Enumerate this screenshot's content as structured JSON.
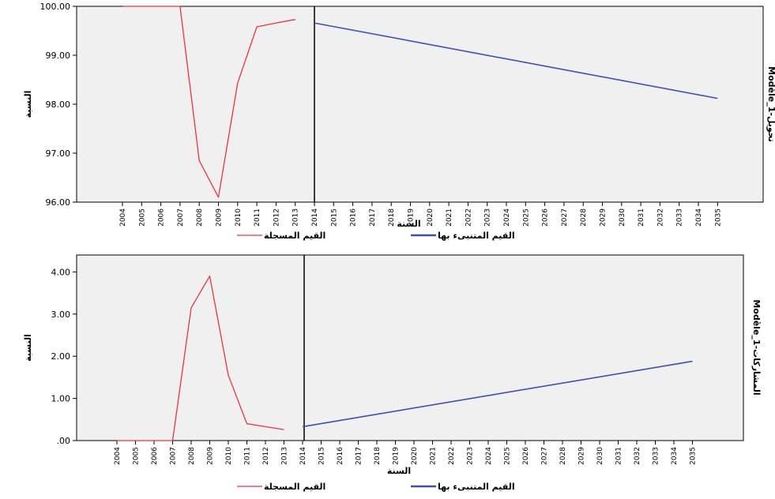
{
  "chart_data": [
    {
      "type": "line",
      "panel_label": "Modèle_1-تحويل",
      "ylabel": "النسبة",
      "xlabel": "السنة",
      "ylim": [
        96.0,
        100.0
      ],
      "yticks": [
        "96.00",
        "97.00",
        "98.00",
        "99.00",
        "100.00"
      ],
      "ytick_values": [
        96,
        97,
        98,
        99,
        100
      ],
      "categories": [
        "2004",
        "2005",
        "2006",
        "2007",
        "2008",
        "2009",
        "2010",
        "2011",
        "2012",
        "2013",
        "2014",
        "2015",
        "2016",
        "2017",
        "2018",
        "2019",
        "2020",
        "2021",
        "2022",
        "2023",
        "2024",
        "2025",
        "2026",
        "2027",
        "2028",
        "2029",
        "2030",
        "2031",
        "2032",
        "2033",
        "2034",
        "2035"
      ],
      "forecast_start": "2014",
      "series": [
        {
          "name": "القيم المسجلة",
          "color": "#e8343c",
          "x": [
            "2004",
            "2005",
            "2006",
            "2007",
            "2008",
            "2009",
            "2010",
            "2011",
            "2012",
            "2013"
          ],
          "values": [
            100.0,
            100.0,
            100.0,
            100.0,
            96.85,
            96.1,
            98.43,
            99.58,
            99.66,
            99.73
          ]
        },
        {
          "name": "القيم المتنبىء بها",
          "color": "#3e4fb0",
          "x": [
            "2014",
            "2035"
          ],
          "values": [
            99.66,
            98.12
          ]
        }
      ],
      "grid": false,
      "legend_position": "bottom"
    },
    {
      "type": "line",
      "panel_label": "Modèle_1-المشاركات",
      "ylabel": "النسبة",
      "xlabel": "السنة",
      "ylim": [
        0.0,
        4.4
      ],
      "yticks": [
        ".00",
        "1.00",
        "2.00",
        "3.00",
        "4.00"
      ],
      "ytick_values": [
        0,
        1,
        2,
        3,
        4
      ],
      "categories": [
        "2004",
        "2005",
        "2006",
        "2007",
        "2008",
        "2009",
        "2010",
        "2011",
        "2012",
        "2013",
        "2014",
        "2015",
        "2016",
        "2017",
        "2018",
        "2019",
        "2020",
        "2021",
        "2022",
        "2023",
        "2024",
        "2025",
        "2026",
        "2027",
        "2028",
        "2029",
        "2030",
        "2031",
        "2032",
        "2033",
        "2034",
        "2035"
      ],
      "forecast_start": "2014",
      "series": [
        {
          "name": "القيم المسجلة",
          "color": "#e8343c",
          "x": [
            "2004",
            "2005",
            "2006",
            "2007",
            "2008",
            "2009",
            "2010",
            "2011",
            "2012",
            "2013"
          ],
          "values": [
            0.0,
            0.0,
            0.0,
            0.0,
            3.15,
            3.9,
            1.55,
            0.4,
            0.33,
            0.26
          ]
        },
        {
          "name": "القيم المتنبىء بها",
          "color": "#3e4fb0",
          "x": [
            "2014",
            "2035"
          ],
          "values": [
            0.33,
            1.88
          ]
        }
      ],
      "grid": false,
      "legend_position": "bottom"
    }
  ]
}
